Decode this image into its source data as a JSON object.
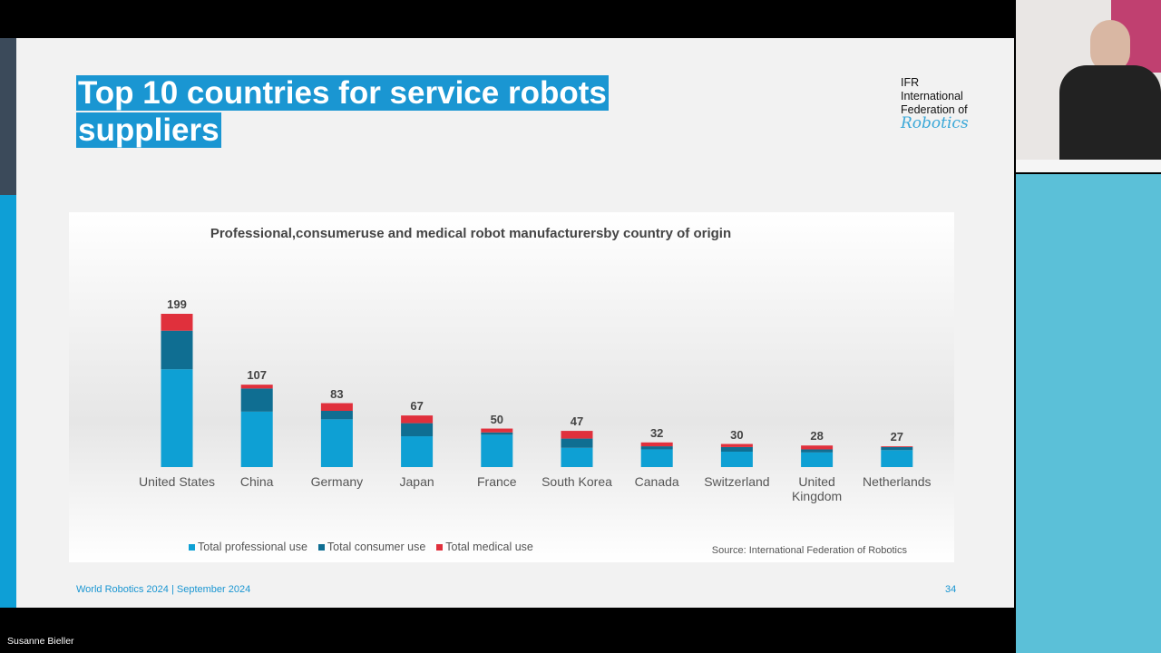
{
  "slide": {
    "title": "Top 10 countries for service robots suppliers",
    "logo": [
      "IFR",
      "International",
      "Federation of",
      "Robotics"
    ],
    "source": "Source: International Federation of Robotics",
    "footer": "World Robotics 2024  | September 2024",
    "page": "34"
  },
  "participant": "Susanne Bieller",
  "chart_data": {
    "type": "stacked-bar",
    "title": "Professional,consumeruse and medical robot manufacturersby country of origin",
    "categories": [
      "United States",
      "China",
      "Germany",
      "Japan",
      "France",
      "South Korea",
      "Canada",
      "Switzerland",
      "United Kingdom",
      "Netherlands"
    ],
    "series": [
      {
        "name": "Total professional use",
        "color": "#0ea0d4",
        "values": [
          127,
          72,
          62,
          40,
          42,
          25,
          23,
          20,
          19,
          22
        ]
      },
      {
        "name": "Total consumer use",
        "color": "#0f6e92",
        "values": [
          50,
          30,
          11,
          17,
          3,
          12,
          4,
          6,
          4,
          4
        ]
      },
      {
        "name": "Total medical use",
        "color": "#e0303c",
        "values": [
          22,
          5,
          10,
          10,
          5,
          10,
          5,
          4,
          5,
          1
        ]
      }
    ],
    "totals": [
      199,
      107,
      83,
      67,
      50,
      47,
      32,
      30,
      28,
      27
    ],
    "legend": "bottom"
  }
}
